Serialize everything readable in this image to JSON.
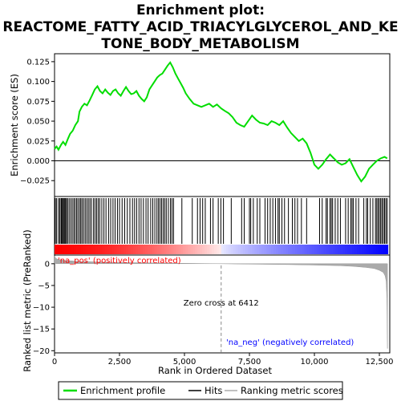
{
  "chart_data": {
    "type": "line",
    "title_lines": [
      "Enrichment plot:",
      "REACTOME_FATTY_ACID_TRIACYLGLYCEROL_AND_KE",
      "TONE_BODY_METABOLISM"
    ],
    "top_panel": {
      "ylabel": "Enrichment score (ES)",
      "xlim": [
        0,
        12900
      ],
      "ylim": [
        -0.045,
        0.135
      ],
      "yticks": [
        -0.025,
        0.0,
        0.025,
        0.05,
        0.075,
        0.1,
        0.125
      ],
      "ytick_labels": [
        "−0.025",
        "0.000",
        "0.025",
        "0.050",
        "0.075",
        "0.100",
        "0.125"
      ],
      "series": [
        {
          "name": "Enrichment profile",
          "color": "#00dd00",
          "x": [
            0,
            80,
            150,
            250,
            330,
            420,
            520,
            600,
            700,
            800,
            900,
            960,
            1050,
            1150,
            1250,
            1350,
            1450,
            1550,
            1650,
            1750,
            1850,
            1950,
            2050,
            2150,
            2250,
            2350,
            2450,
            2550,
            2650,
            2750,
            2850,
            2950,
            3050,
            3150,
            3250,
            3350,
            3450,
            3550,
            3650,
            3750,
            3850,
            3950,
            4050,
            4150,
            4250,
            4350,
            4450,
            4550,
            4650,
            4750,
            4850,
            4950,
            5050,
            5200,
            5350,
            5500,
            5650,
            5800,
            5950,
            6100,
            6250,
            6412,
            6550,
            6700,
            6850,
            7000,
            7150,
            7300,
            7450,
            7600,
            7750,
            7900,
            8050,
            8200,
            8350,
            8500,
            8650,
            8800,
            8950,
            9100,
            9250,
            9400,
            9550,
            9700,
            9850,
            10000,
            10150,
            10300,
            10450,
            10600,
            10750,
            10900,
            11050,
            11200,
            11350,
            11500,
            11650,
            11800,
            11950,
            12100,
            12250,
            12400,
            12550,
            12700,
            12800
          ],
          "y": [
            0.015,
            0.018,
            0.014,
            0.02,
            0.024,
            0.02,
            0.028,
            0.034,
            0.038,
            0.045,
            0.05,
            0.062,
            0.068,
            0.072,
            0.07,
            0.076,
            0.083,
            0.09,
            0.094,
            0.088,
            0.085,
            0.09,
            0.086,
            0.083,
            0.088,
            0.09,
            0.085,
            0.082,
            0.088,
            0.093,
            0.088,
            0.084,
            0.085,
            0.088,
            0.082,
            0.078,
            0.075,
            0.08,
            0.09,
            0.095,
            0.1,
            0.105,
            0.108,
            0.11,
            0.115,
            0.12,
            0.124,
            0.118,
            0.11,
            0.104,
            0.098,
            0.092,
            0.085,
            0.078,
            0.072,
            0.07,
            0.068,
            0.07,
            0.072,
            0.068,
            0.071,
            0.066,
            0.063,
            0.06,
            0.055,
            0.048,
            0.045,
            0.043,
            0.05,
            0.057,
            0.052,
            0.048,
            0.047,
            0.045,
            0.05,
            0.048,
            0.045,
            0.05,
            0.042,
            0.035,
            0.03,
            0.025,
            0.028,
            0.022,
            0.01,
            -0.005,
            -0.01,
            -0.005,
            0.002,
            0.008,
            0.003,
            -0.002,
            -0.005,
            -0.003,
            0.002,
            -0.008,
            -0.018,
            -0.026,
            -0.02,
            -0.01,
            -0.005,
            0.0,
            0.003,
            0.005,
            0.003
          ]
        }
      ]
    },
    "hits": [
      30,
      80,
      150,
      200,
      250,
      280,
      310,
      350,
      380,
      420,
      460,
      500,
      560,
      620,
      680,
      740,
      790,
      850,
      900,
      960,
      1010,
      1060,
      1120,
      1180,
      1240,
      1300,
      1360,
      1420,
      1500,
      1560,
      1620,
      1680,
      1740,
      1820,
      1900,
      1980,
      2080,
      2160,
      2250,
      2330,
      2420,
      2500,
      2600,
      2700,
      2800,
      2900,
      3000,
      3080,
      3160,
      3250,
      3330,
      3420,
      3520,
      3600,
      3700,
      3780,
      3860,
      3940,
      4000,
      4060,
      4120,
      4180,
      4240,
      4300,
      4380,
      4460,
      4520,
      4580,
      4900,
      5300,
      5500,
      5600,
      5700,
      5800,
      6000,
      6100,
      6300,
      6400,
      6500,
      6800,
      7200,
      7300,
      7500,
      7550,
      7650,
      7800,
      7900,
      8100,
      8200,
      8300,
      8400,
      8500,
      8600,
      8650,
      8750,
      8850,
      9000,
      9150,
      9250,
      9350,
      9500,
      9700,
      10200,
      10300,
      10450,
      10500,
      10600,
      10650,
      10700,
      10800,
      10900,
      11000,
      11200,
      11300,
      11400,
      11450,
      11500,
      11600,
      11700,
      11900,
      12000,
      12050,
      12150,
      12250,
      12350,
      12400,
      12450,
      12500,
      12550,
      12600,
      12650,
      12700,
      12750,
      12800
    ],
    "bottom_panel": {
      "ylabel": "Ranked list metric (PreRanked)",
      "xlabel": "Rank in Ordered Dataset",
      "xlim": [
        0,
        12900
      ],
      "ylim": [
        -20.5,
        2.0
      ],
      "yticks": [
        0,
        -5,
        -10,
        -15,
        -20
      ],
      "ytick_labels": [
        "0",
        "−5",
        "−10",
        "−15",
        "−20"
      ],
      "xticks": [
        0,
        2500,
        5000,
        7500,
        10000,
        12500
      ],
      "xtick_labels": [
        "0",
        "2,500",
        "5,000",
        "7,500",
        "10,000",
        "12,500"
      ],
      "zero_cross": 6412,
      "zero_cross_label": "Zero cross at 6412",
      "pos_label": "'na_pos' (positively correlated)",
      "neg_label": "'na_neg' (negatively correlated)",
      "pos_color": "#ff0000",
      "neg_color": "#0000ff",
      "metric_color": "#aaaaaa",
      "metric_curve": {
        "x": [
          0,
          50,
          200,
          500,
          1000,
          2000,
          3000,
          4000,
          5000,
          6000,
          6412,
          7000,
          8000,
          9000,
          10000,
          11000,
          11500,
          12000,
          12300,
          12500,
          12650,
          12720,
          12760,
          12790,
          12810
        ],
        "y": [
          1.8,
          1.2,
          0.9,
          0.7,
          0.5,
          0.35,
          0.25,
          0.18,
          0.1,
          0.03,
          0.0,
          -0.05,
          -0.12,
          -0.2,
          -0.3,
          -0.45,
          -0.6,
          -0.85,
          -1.1,
          -1.5,
          -2.0,
          -2.8,
          -4.0,
          -8.0,
          -19.5
        ]
      }
    },
    "legend": {
      "items": [
        {
          "label": "Enrichment profile",
          "color": "#00dd00"
        },
        {
          "label": "Hits",
          "color": "#000000"
        },
        {
          "label": "Ranking metric scores",
          "color": "#aaaaaa"
        }
      ]
    }
  }
}
